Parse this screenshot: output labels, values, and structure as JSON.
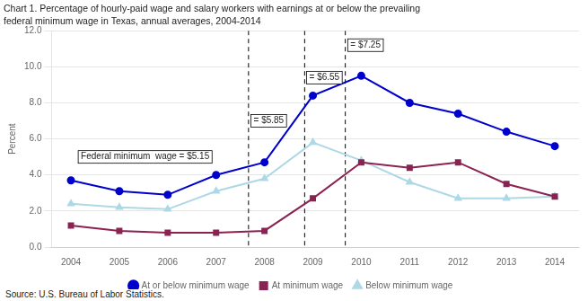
{
  "chart_data": {
    "type": "line",
    "title": "Chart 1. Percentage of hourly-paid wage and salary workers with earnings at or below the prevailing",
    "subtitle": "federal minimum wage in Texas, annual averages, 2004-2014",
    "source": "Source: U.S. Bureau of Labor Statistics.",
    "ylabel": "Percent",
    "x": [
      2004,
      2005,
      2006,
      2007,
      2008,
      2009,
      2010,
      2011,
      2012,
      2013,
      2014
    ],
    "series": [
      {
        "name": "At or below minimum wage",
        "color": "#0000cd",
        "marker": "circle",
        "line_style": "solid",
        "values": [
          3.7,
          3.1,
          2.9,
          4.0,
          4.7,
          8.4,
          9.5,
          8.0,
          7.4,
          6.4,
          5.6
        ]
      },
      {
        "name": "At minimum wage",
        "color": "#8b2252",
        "marker": "square",
        "line_style": "solid",
        "values": [
          1.2,
          0.9,
          0.8,
          0.8,
          0.9,
          2.7,
          4.7,
          4.4,
          4.7,
          3.5,
          2.8
        ]
      },
      {
        "name": "Below minimum wage",
        "color": "#add8e6",
        "marker": "triangle",
        "line_style": "solid",
        "values": [
          2.4,
          2.2,
          2.1,
          3.1,
          3.8,
          5.8,
          4.8,
          3.6,
          2.7,
          2.7,
          2.8
        ]
      }
    ],
    "xlim": [
      2003.6,
      2014.5
    ],
    "xticks": [
      2004,
      2005,
      2006,
      2007,
      2008,
      2009,
      2010,
      2011,
      2012,
      2013,
      2014
    ],
    "ylim": [
      0.0,
      12.0
    ],
    "yticks": [
      {
        "value": 0.0,
        "label": "0.0"
      },
      {
        "value": 2.0,
        "label": "2.0"
      },
      {
        "value": 4.0,
        "label": "4.0"
      },
      {
        "value": 6.0,
        "label": "6.0"
      },
      {
        "value": 8.0,
        "label": "8.0"
      },
      {
        "value": 10.0,
        "label": "10.0"
      },
      {
        "value": 12.0,
        "label": "12.0"
      }
    ],
    "vlines": [
      2007.67,
      2008.83,
      2009.67
    ],
    "annotations": [
      {
        "x": 2007.72,
        "y": 7.0,
        "text": "= $5.85"
      },
      {
        "x": 2008.87,
        "y": 9.4,
        "text": "= $6.55"
      },
      {
        "x": 2009.72,
        "y": 11.2,
        "text": "= $7.25"
      },
      {
        "x": 2004.15,
        "y": 5.0,
        "text": "Federal minimum  wage = $5.15"
      }
    ],
    "grid": "y",
    "legend": "bottom"
  }
}
